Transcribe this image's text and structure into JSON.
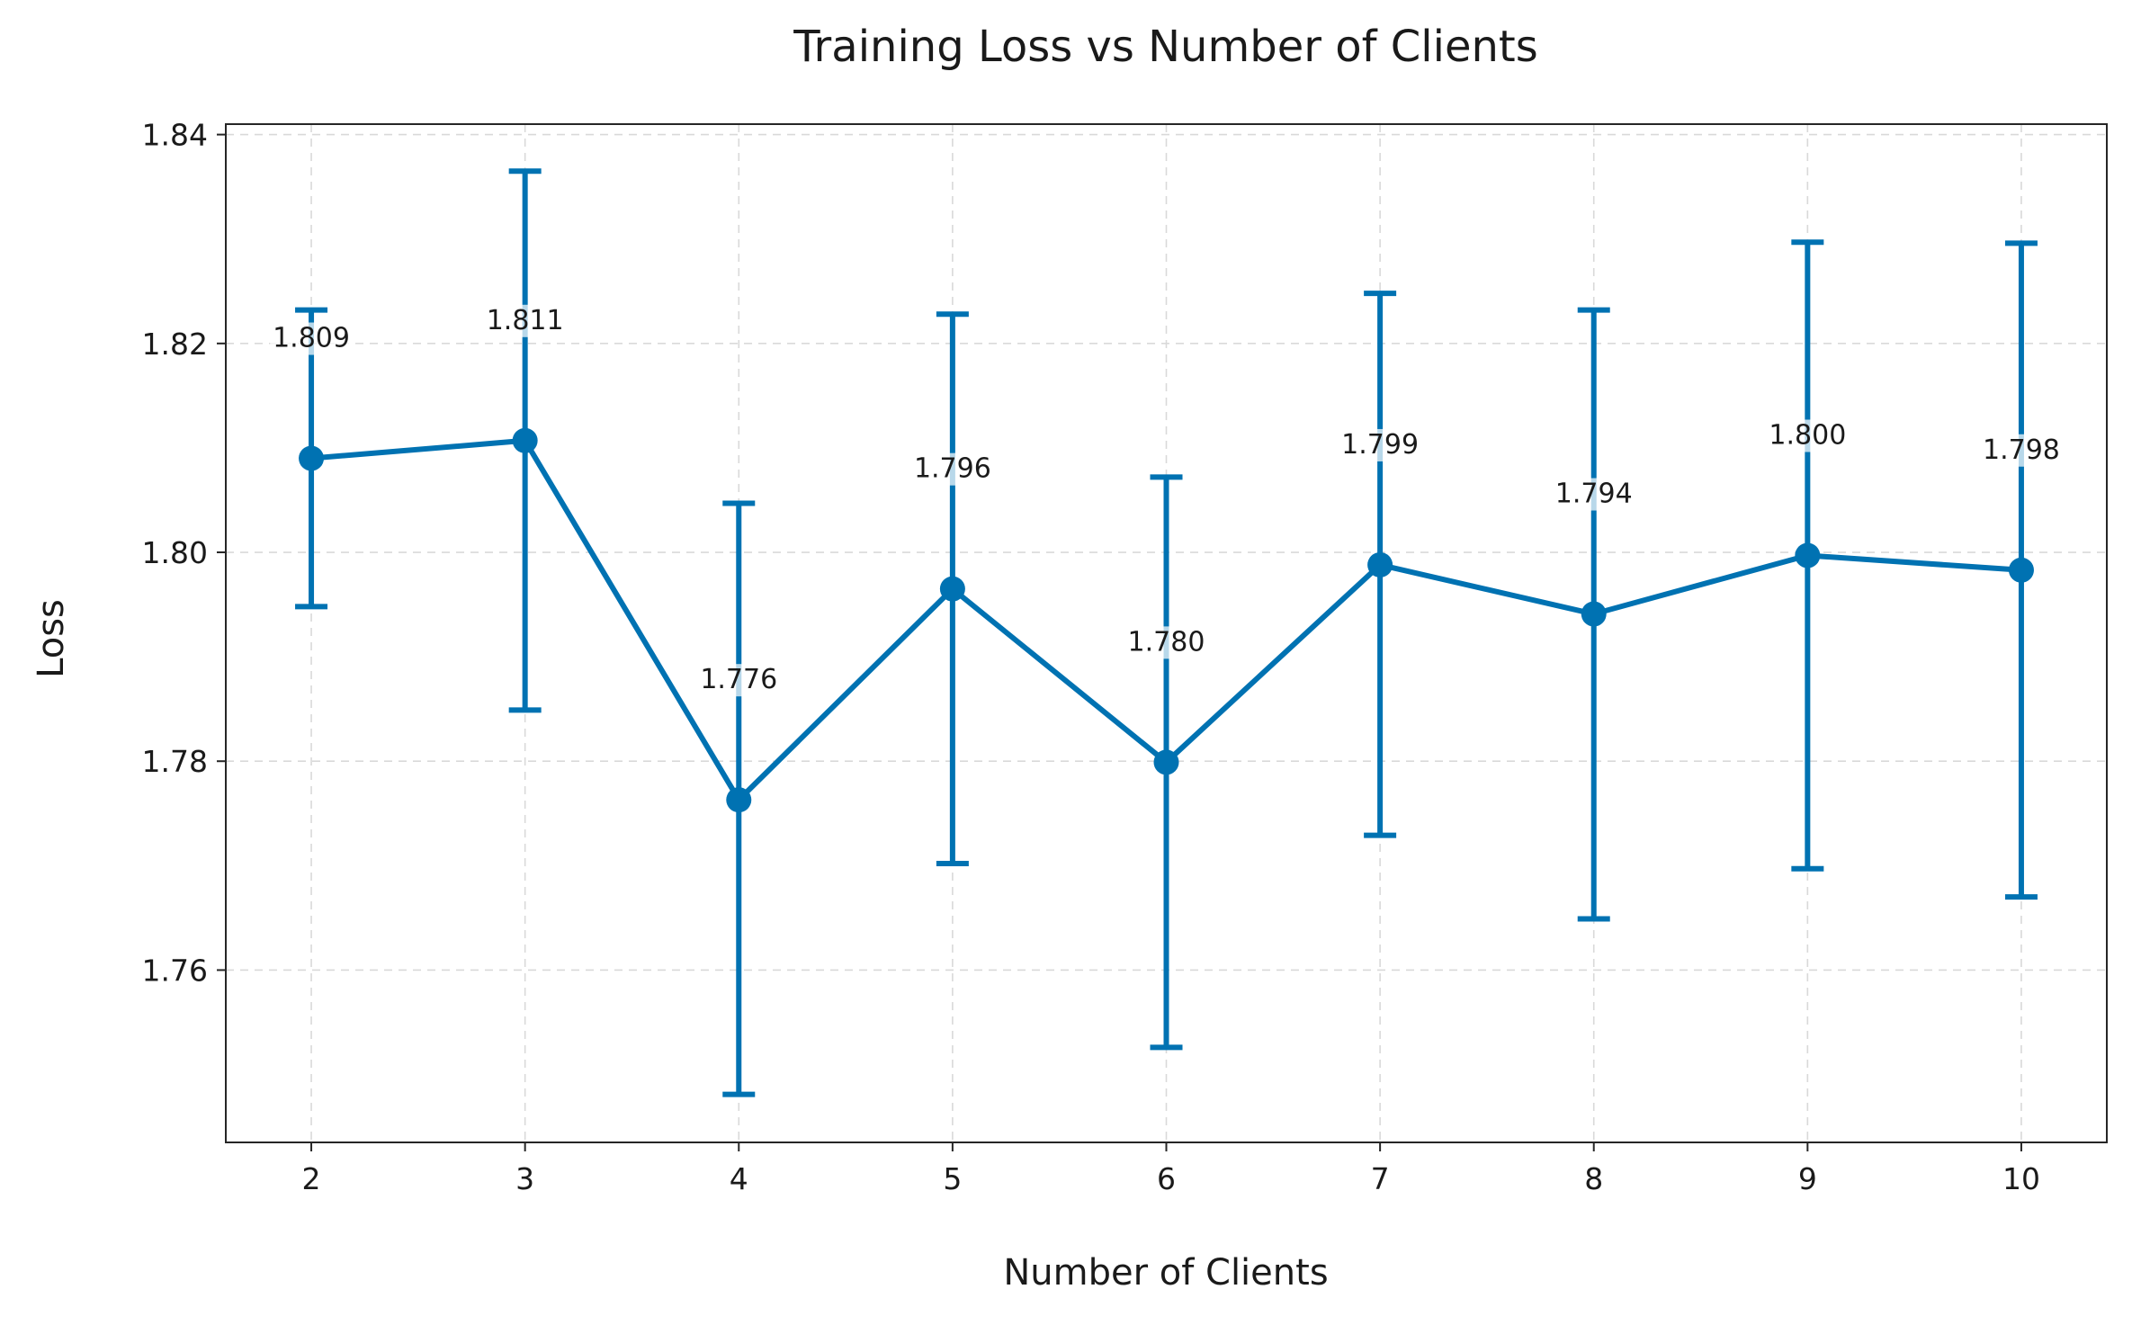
{
  "chart_data": {
    "type": "line",
    "title": "Training Loss vs Number of Clients",
    "xlabel": "Number of Clients",
    "ylabel": "Loss",
    "x": [
      2,
      3,
      4,
      5,
      6,
      7,
      8,
      9,
      10
    ],
    "x_tick_labels": [
      "2",
      "3",
      "4",
      "5",
      "6",
      "7",
      "8",
      "9",
      "10"
    ],
    "y_ticks": [
      1.76,
      1.78,
      1.8,
      1.82,
      1.84
    ],
    "y_tick_labels": [
      "1.76",
      "1.78",
      "1.80",
      "1.82",
      "1.84"
    ],
    "ylim": [
      1.7435,
      1.841
    ],
    "xlim": [
      1.6,
      10.4
    ],
    "grid": true,
    "series": [
      {
        "values": [
          1.809,
          1.8107,
          1.7763,
          1.7965,
          1.7799,
          1.7988,
          1.7941,
          1.7997,
          1.7983
        ],
        "error_lower": [
          1.7948,
          1.7849,
          1.7481,
          1.7702,
          1.7526,
          1.7729,
          1.7649,
          1.7697,
          1.767
        ],
        "error_upper": [
          1.8232,
          1.8365,
          1.8047,
          1.8228,
          1.8072,
          1.8248,
          1.8232,
          1.8297,
          1.8296
        ],
        "labels": [
          "1.809",
          "1.811",
          "1.776",
          "1.796",
          "1.780",
          "1.799",
          "1.794",
          "1.800",
          "1.798"
        ]
      }
    ],
    "color": "#0072b2"
  }
}
